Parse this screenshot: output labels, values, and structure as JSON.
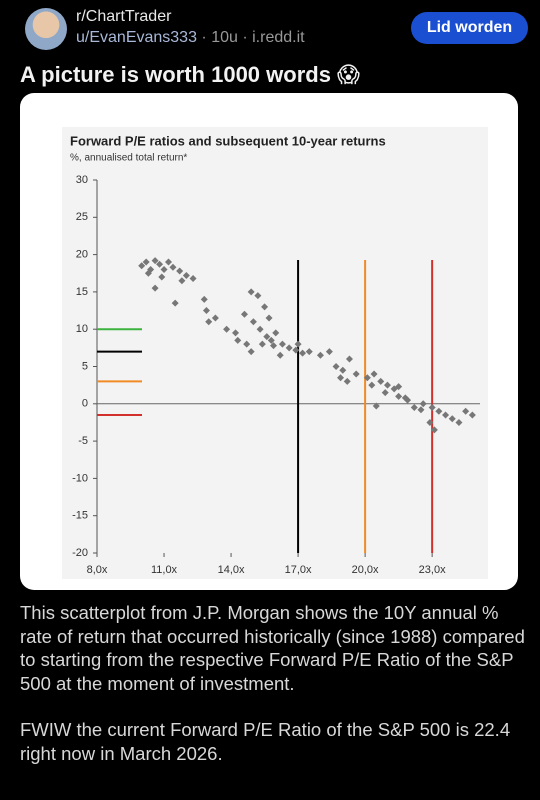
{
  "post": {
    "subreddit": "r/ChartTrader",
    "user": "u/EvanEvans333",
    "age": "10u",
    "domain": "i.redd.it",
    "join_button": "Lid worden",
    "title": "A picture is worth 1000 words 😱",
    "body": [
      "This scatterplot from J.P. Morgan shows the 10Y annual % rate of return that occurred historically (since 1988) compared to starting from the respective Forward P/E Ratio of the S&P 500 at the moment of investment.",
      "FWIW the current Forward P/E Ratio of the S&P 500 is 22.4 right now in March 2026."
    ]
  },
  "chart_data": {
    "type": "scatter",
    "title": "Forward P/E ratios and subsequent 10-year returns",
    "subtitle": "%, annualised total return*",
    "color": "#777777",
    "x": [
      10.0,
      10.2,
      10.4,
      10.6,
      10.8,
      11.0,
      11.2,
      10.3,
      10.9,
      11.4,
      11.7,
      12.0,
      12.3,
      11.8,
      10.6,
      11.5,
      12.8,
      12.9,
      13.3,
      13.0,
      13.8,
      14.2,
      14.6,
      14.9,
      15.2,
      15.5,
      15.0,
      15.3,
      15.6,
      15.8,
      14.7,
      14.3,
      15.9,
      16.3,
      16.6,
      16.9,
      17.2,
      17.5,
      17.0,
      16.0,
      15.7,
      15.4,
      14.9,
      16.2,
      18.0,
      18.4,
      18.7,
      19.0,
      19.3,
      19.6,
      19.2,
      18.9,
      20.1,
      20.4,
      20.7,
      21.0,
      21.3,
      20.9,
      20.3,
      21.5,
      21.9,
      22.2,
      22.6,
      23.0,
      23.3,
      23.6,
      23.9,
      24.2,
      24.5,
      24.8,
      22.9,
      23.1,
      22.5,
      21.5,
      20.5,
      21.8
    ],
    "values": [
      18.5,
      19,
      18,
      19.2,
      18.7,
      18,
      19,
      17.5,
      17,
      18.3,
      17.8,
      17.2,
      16.8,
      16.5,
      15.5,
      13.5,
      14,
      12.5,
      11.5,
      11,
      10,
      9.5,
      12,
      15,
      14.5,
      13,
      11,
      10,
      9,
      8.5,
      8,
      8.5,
      7.8,
      8,
      7.5,
      7.2,
      6.8,
      7,
      8,
      9.5,
      11.5,
      8,
      7,
      6.5,
      6.5,
      7,
      5,
      4.5,
      6,
      4,
      3,
      3.5,
      3.5,
      4,
      3,
      2.5,
      2,
      1.5,
      2.5,
      1,
      0.5,
      -0.5,
      0,
      -0.5,
      -1,
      -1.5,
      -2,
      -2.5,
      -1,
      -1.5,
      -2.5,
      -3.5,
      -0.8,
      2.3,
      -0.3,
      0.8
    ],
    "xlim": [
      8,
      25.5
    ],
    "ylim": [
      -20,
      30
    ],
    "xticks": [
      {
        "value": 8,
        "label": "8,0x"
      },
      {
        "value": 11,
        "label": "11,0x"
      },
      {
        "value": 14,
        "label": "14,0x"
      },
      {
        "value": 17,
        "label": "17,0x"
      },
      {
        "value": 20,
        "label": "20,0x"
      },
      {
        "value": 23,
        "label": "23,0x"
      }
    ],
    "yticks": [
      30,
      25,
      20,
      15,
      10,
      5,
      0,
      -5,
      -10,
      -15,
      -20
    ],
    "reference_lines": {
      "horizontal": [
        {
          "y": 10,
          "color": "#3cb33c"
        },
        {
          "y": 7,
          "color": "#000000"
        },
        {
          "y": 3,
          "color": "#f08a24"
        },
        {
          "y": -1.5,
          "color": "#d2302c"
        }
      ],
      "vertical": [
        {
          "x": 17,
          "color": "#000000"
        },
        {
          "x": 20,
          "color": "#f08a24"
        },
        {
          "x": 23,
          "color": "#d2302c"
        }
      ]
    }
  }
}
